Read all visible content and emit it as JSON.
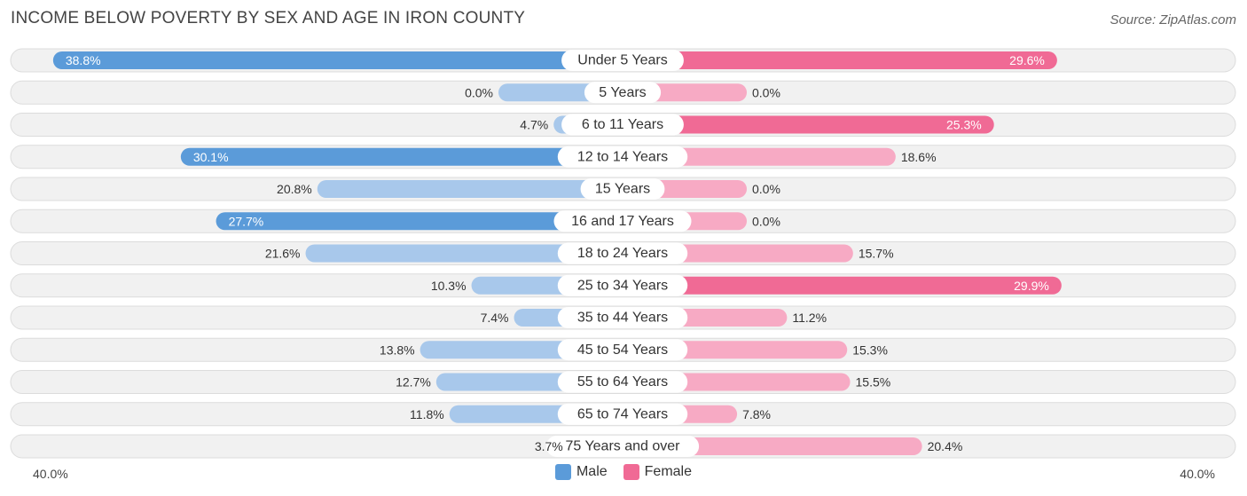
{
  "chart_data": {
    "type": "bar",
    "orientation": "diverging-horizontal",
    "title": "INCOME BELOW POVERTY BY SEX AND AGE IN IRON COUNTY",
    "source": "Source: ZipAtlas.com",
    "categories": [
      "Under 5 Years",
      "5 Years",
      "6 to 11 Years",
      "12 to 14 Years",
      "15 Years",
      "16 and 17 Years",
      "18 to 24 Years",
      "25 to 34 Years",
      "35 to 44 Years",
      "45 to 54 Years",
      "55 to 64 Years",
      "65 to 74 Years",
      "75 Years and over"
    ],
    "series": [
      {
        "name": "Male",
        "values": [
          38.8,
          0.0,
          4.7,
          30.1,
          20.8,
          27.7,
          21.6,
          10.3,
          7.4,
          13.8,
          12.7,
          11.8,
          3.7
        ]
      },
      {
        "name": "Female",
        "values": [
          29.6,
          0.0,
          25.3,
          18.6,
          0.0,
          0.0,
          15.7,
          29.9,
          11.2,
          15.3,
          15.5,
          7.8,
          20.4
        ]
      }
    ],
    "value_labels": {
      "male": [
        "38.8%",
        "0.0%",
        "4.7%",
        "30.1%",
        "20.8%",
        "27.7%",
        "21.6%",
        "10.3%",
        "7.4%",
        "13.8%",
        "12.7%",
        "11.8%",
        "3.7%"
      ],
      "female": [
        "29.6%",
        "0.0%",
        "25.3%",
        "18.6%",
        "0.0%",
        "0.0%",
        "15.7%",
        "29.9%",
        "11.2%",
        "15.3%",
        "15.5%",
        "7.8%",
        "20.4%"
      ]
    },
    "axis": {
      "left_label": "40.0%",
      "right_label": "40.0%",
      "range": [
        0,
        40
      ]
    },
    "legend": {
      "position": "bottom-center",
      "male_label": "Male",
      "female_label": "Female"
    },
    "colors": {
      "male_strong": "#5b9bd9",
      "male_light": "#a8c8eb",
      "female_strong": "#f06a95",
      "female_light": "#f7aac4"
    }
  }
}
